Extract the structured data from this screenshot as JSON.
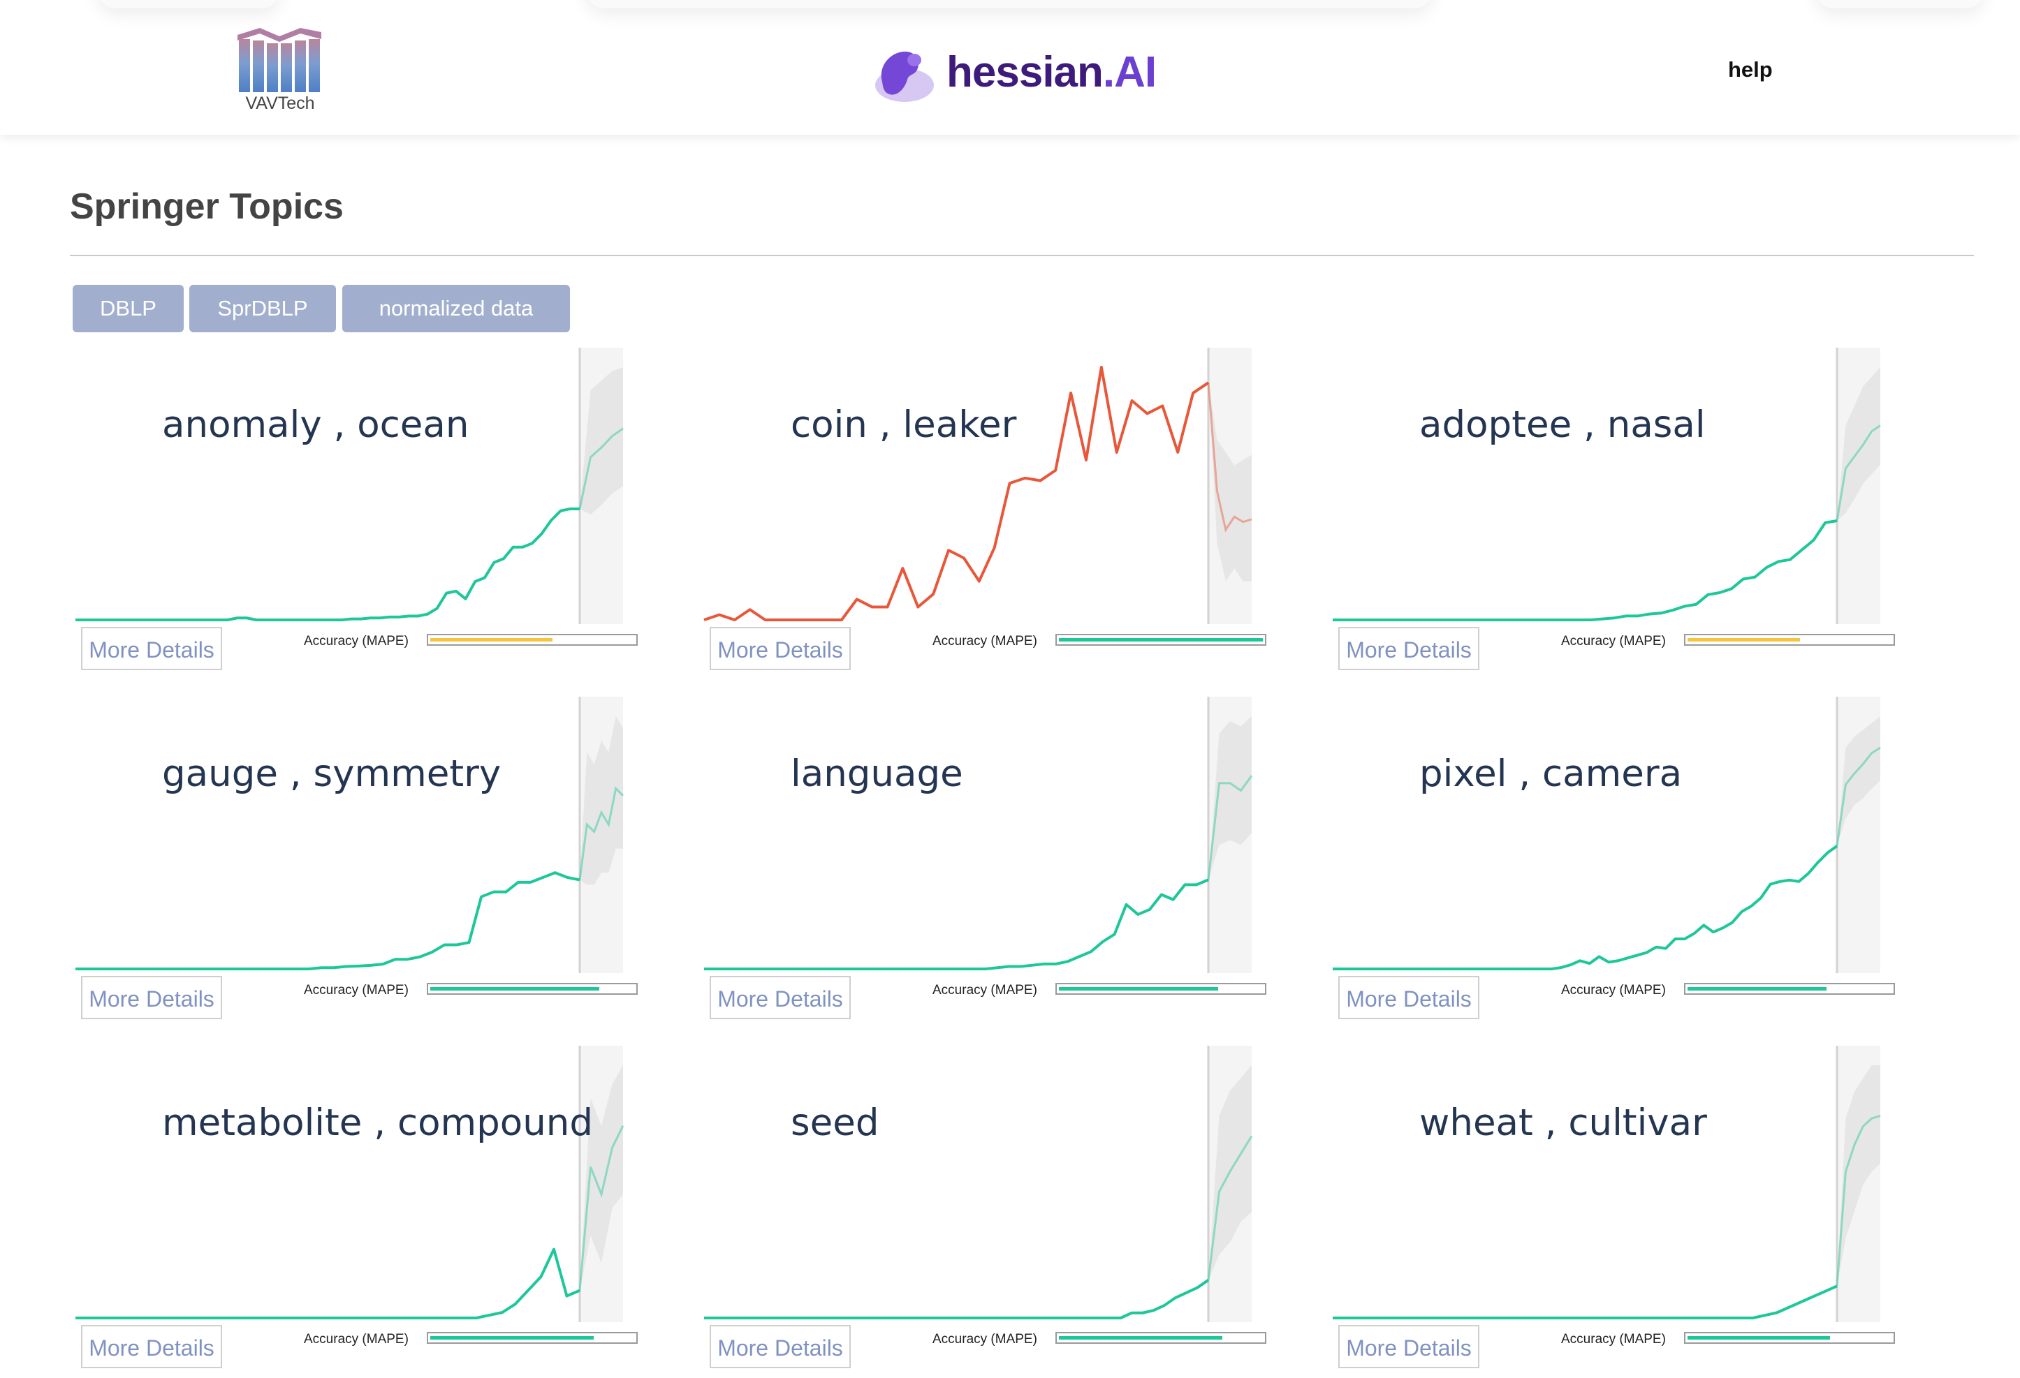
{
  "header": {
    "left_logo_text": "VAVTech",
    "brand_name": "hessian",
    "brand_suffix": ".AI",
    "help_label": "help"
  },
  "page": {
    "title": "Springer Topics",
    "source_buttons": [
      {
        "label": "DBLP"
      },
      {
        "label": "SprDBLP"
      },
      {
        "label": "normalized data"
      }
    ]
  },
  "colors": {
    "series_normal": "#1ec799",
    "series_alert": "#e8573a",
    "forecast_band": "#e6e6e6",
    "forecast_area": "#f4f4f4",
    "accuracy_good": "#1ec799",
    "accuracy_medium": "#f5c542",
    "button_bg": "#a1aecd",
    "more_details_text": "#8092c2"
  },
  "cards": [
    {
      "title": "anomaly , ocean",
      "more_label": "More Details",
      "accuracy_label": "Accuracy (MAPE)",
      "accuracy": 0.6,
      "accuracy_color": "#f5c542",
      "color": "#1ec799",
      "history": [
        0,
        0,
        0,
        0,
        0,
        0,
        0,
        0,
        0,
        0,
        0,
        0,
        0,
        0,
        0,
        0,
        0,
        0.01,
        0.01,
        0,
        0,
        0,
        0,
        0,
        0,
        0,
        0,
        0,
        0,
        0.005,
        0.005,
        0.01,
        0.01,
        0.015,
        0.015,
        0.02,
        0.02,
        0.03,
        0.06,
        0.14,
        0.15,
        0.11,
        0.2,
        0.22,
        0.3,
        0.32,
        0.38,
        0.38,
        0.4,
        0.45,
        0.52,
        0.57,
        0.58,
        0.58
      ],
      "forecast": [
        0.58,
        0.85,
        0.9,
        0.96,
        1.0
      ],
      "band_upper": [
        0.58,
        1.2,
        1.25,
        1.3,
        1.32
      ],
      "band_lower": [
        0.58,
        0.55,
        0.6,
        0.66,
        0.7
      ]
    },
    {
      "title": "coin , leaker",
      "more_label": "More Details",
      "accuracy_label": "Accuracy (MAPE)",
      "accuracy": 1.0,
      "accuracy_color": "#1ec799",
      "color": "#e8573a",
      "history": [
        0,
        0.02,
        0,
        0.04,
        0,
        0,
        0,
        0,
        0,
        0,
        0.08,
        0.05,
        0.05,
        0.2,
        0.05,
        0.1,
        0.27,
        0.24,
        0.15,
        0.28,
        0.53,
        0.55,
        0.54,
        0.58,
        0.88,
        0.62,
        0.98,
        0.65,
        0.85,
        0.8,
        0.83,
        0.65,
        0.88,
        0.92
      ],
      "forecast": [
        0.92,
        0.5,
        0.35,
        0.4,
        0.38,
        0.39
      ],
      "band_upper": [
        0.92,
        0.7,
        0.65,
        0.6,
        0.62,
        0.64
      ],
      "band_lower": [
        0.92,
        0.3,
        0.15,
        0.2,
        0.15,
        0.15
      ]
    },
    {
      "title": "adoptee , nasal",
      "more_label": "More Details",
      "accuracy_label": "Accuracy (MAPE)",
      "accuracy": 0.55,
      "accuracy_color": "#f5c542",
      "color": "#1ec799",
      "history": [
        0,
        0,
        0,
        0,
        0,
        0,
        0,
        0,
        0,
        0,
        0,
        0,
        0,
        0,
        0,
        0,
        0,
        0,
        0,
        0,
        0,
        0,
        0,
        0.005,
        0.01,
        0.02,
        0.02,
        0.03,
        0.035,
        0.05,
        0.07,
        0.08,
        0.13,
        0.14,
        0.16,
        0.21,
        0.22,
        0.27,
        0.3,
        0.31,
        0.36,
        0.41,
        0.5,
        0.51
      ],
      "forecast": [
        0.51,
        0.78,
        0.84,
        0.9,
        0.97,
        1.0
      ],
      "band_upper": [
        0.51,
        1.0,
        1.1,
        1.2,
        1.25,
        1.3
      ],
      "band_lower": [
        0.51,
        0.55,
        0.62,
        0.7,
        0.75,
        0.8
      ]
    },
    {
      "title": "gauge , symmetry",
      "more_label": "More Details",
      "accuracy_label": "Accuracy (MAPE)",
      "accuracy": 0.83,
      "accuracy_color": "#1ec799",
      "color": "#1ec799",
      "history": [
        0,
        0,
        0,
        0,
        0,
        0,
        0,
        0,
        0,
        0,
        0,
        0,
        0,
        0,
        0,
        0,
        0,
        0,
        0,
        0,
        0.005,
        0.005,
        0.01,
        0.012,
        0.015,
        0.02,
        0.04,
        0.04,
        0.05,
        0.07,
        0.1,
        0.1,
        0.11,
        0.3,
        0.32,
        0.32,
        0.36,
        0.36,
        0.38,
        0.4,
        0.38,
        0.37
      ],
      "forecast": [
        0.37,
        0.6,
        0.57,
        0.65,
        0.6,
        0.75,
        0.72
      ],
      "band_upper": [
        0.37,
        0.9,
        0.85,
        0.95,
        0.9,
        1.05,
        1.0
      ],
      "band_lower": [
        0.37,
        0.35,
        0.35,
        0.4,
        0.4,
        0.5,
        0.5
      ]
    },
    {
      "title": "language",
      "more_label": "More Details",
      "accuracy_label": "Accuracy (MAPE)",
      "accuracy": 0.78,
      "accuracy_color": "#1ec799",
      "color": "#1ec799",
      "history": [
        0,
        0,
        0,
        0,
        0,
        0,
        0,
        0,
        0,
        0,
        0,
        0,
        0,
        0,
        0,
        0,
        0,
        0,
        0,
        0,
        0,
        0,
        0,
        0,
        0,
        0.005,
        0.01,
        0.01,
        0.015,
        0.02,
        0.02,
        0.03,
        0.05,
        0.07,
        0.11,
        0.14,
        0.26,
        0.22,
        0.24,
        0.3,
        0.28,
        0.34,
        0.34,
        0.36
      ],
      "forecast": [
        0.36,
        0.75,
        0.75,
        0.72,
        0.78
      ],
      "band_upper": [
        0.36,
        0.95,
        1.0,
        0.98,
        1.02
      ],
      "band_lower": [
        0.36,
        0.5,
        0.52,
        0.5,
        0.55
      ]
    },
    {
      "title": "pixel , camera",
      "more_label": "More Details",
      "accuracy_label": "Accuracy (MAPE)",
      "accuracy": 0.68,
      "accuracy_color": "#1ec799",
      "color": "#1ec799",
      "history": [
        0,
        0,
        0,
        0,
        0,
        0,
        0,
        0,
        0,
        0,
        0,
        0,
        0,
        0,
        0,
        0,
        0,
        0,
        0,
        0,
        0,
        0,
        0,
        0,
        0.01,
        0.03,
        0.06,
        0.04,
        0.09,
        0.05,
        0.06,
        0.08,
        0.1,
        0.12,
        0.16,
        0.15,
        0.22,
        0.22,
        0.26,
        0.32,
        0.27,
        0.3,
        0.34,
        0.42,
        0.46,
        0.52,
        0.62,
        0.64,
        0.65,
        0.64,
        0.7,
        0.78,
        0.85,
        0.9
      ],
      "forecast": [
        0.9,
        1.35,
        1.43,
        1.5,
        1.58,
        1.62
      ],
      "band_upper": [
        0.9,
        1.62,
        1.7,
        1.75,
        1.8,
        1.85
      ],
      "band_lower": [
        0.9,
        1.1,
        1.2,
        1.25,
        1.32,
        1.38
      ]
    },
    {
      "title": "metabolite , compound",
      "more_label": "More Details",
      "accuracy_label": "Accuracy (MAPE)",
      "accuracy": 0.8,
      "accuracy_color": "#1ec799",
      "color": "#1ec799",
      "history": [
        0,
        0,
        0,
        0,
        0,
        0,
        0,
        0,
        0,
        0,
        0,
        0,
        0,
        0,
        0,
        0,
        0,
        0,
        0,
        0,
        0,
        0,
        0,
        0,
        0,
        0,
        0,
        0,
        0,
        0,
        0,
        0,
        0.01,
        0.02,
        0.05,
        0.1,
        0.15,
        0.25,
        0.08,
        0.1
      ],
      "forecast": [
        0.1,
        0.55,
        0.45,
        0.62,
        0.7
      ],
      "band_upper": [
        0.1,
        0.8,
        0.7,
        0.85,
        0.92
      ],
      "band_lower": [
        0.1,
        0.3,
        0.2,
        0.4,
        0.45
      ]
    },
    {
      "title": "seed",
      "more_label": "More Details",
      "accuracy_label": "Accuracy (MAPE)",
      "accuracy": 0.8,
      "accuracy_color": "#1ec799",
      "color": "#1ec799",
      "history": [
        0,
        0,
        0,
        0,
        0,
        0,
        0,
        0,
        0,
        0,
        0,
        0,
        0,
        0,
        0,
        0,
        0,
        0,
        0,
        0,
        0,
        0,
        0,
        0,
        0,
        0,
        0,
        0,
        0,
        0,
        0,
        0,
        0,
        0,
        0,
        0,
        0,
        0,
        0,
        0.02,
        0.02,
        0.03,
        0.05,
        0.08,
        0.1,
        0.12,
        0.15
      ],
      "forecast": [
        0.15,
        0.5,
        0.58,
        0.65,
        0.72
      ],
      "band_upper": [
        0.15,
        0.8,
        0.9,
        0.95,
        1.0
      ],
      "band_lower": [
        0.15,
        0.25,
        0.3,
        0.38,
        0.42
      ]
    },
    {
      "title": "wheat , cultivar",
      "more_label": "More Details",
      "accuracy_label": "Accuracy (MAPE)",
      "accuracy": 0.7,
      "accuracy_color": "#1ec799",
      "color": "#1ec799",
      "history": [
        0,
        0,
        0,
        0,
        0,
        0,
        0,
        0,
        0,
        0,
        0,
        0,
        0,
        0,
        0,
        0,
        0,
        0,
        0,
        0,
        0,
        0,
        0,
        0,
        0,
        0,
        0,
        0,
        0,
        0,
        0,
        0,
        0,
        0,
        0,
        0,
        0.01,
        0.02,
        0.04,
        0.06,
        0.08,
        0.1,
        0.12
      ],
      "forecast": [
        0.12,
        0.55,
        0.65,
        0.72,
        0.75,
        0.76
      ],
      "band_upper": [
        0.12,
        0.75,
        0.85,
        0.9,
        0.95,
        0.95
      ],
      "band_lower": [
        0.12,
        0.3,
        0.4,
        0.5,
        0.55,
        0.58
      ]
    }
  ]
}
